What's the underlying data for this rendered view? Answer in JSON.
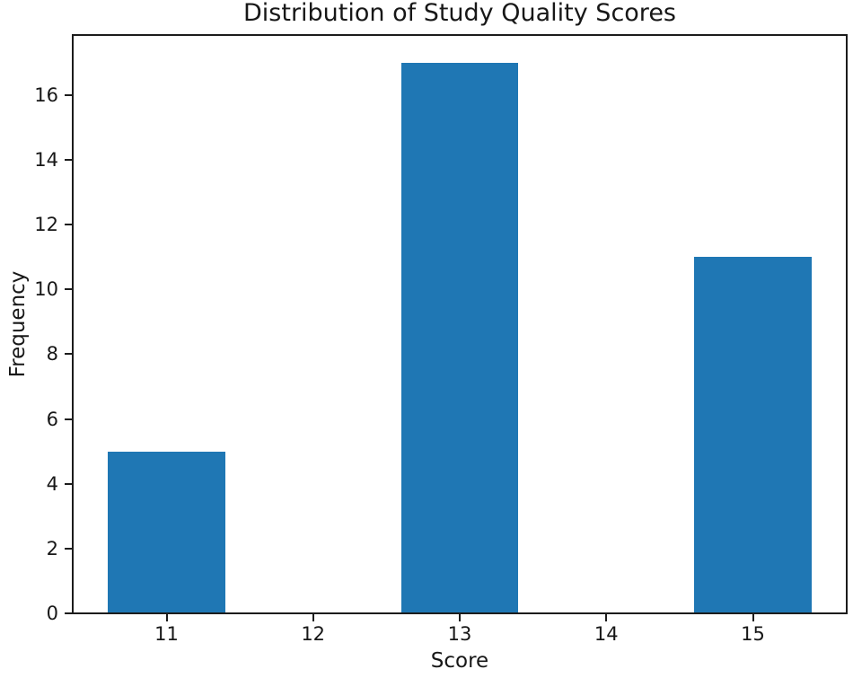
{
  "figure": {
    "background": "#ffffff"
  },
  "chart_data": {
    "type": "bar",
    "title": "Distribution of Study Quality Scores",
    "xlabel": "Score",
    "ylabel": "Frequency",
    "categories": [
      11,
      12,
      13,
      14,
      15
    ],
    "values": [
      5,
      0,
      17,
      0,
      11
    ],
    "bar_color": "#1f77b4",
    "bar_width": 0.8,
    "xticks": [
      11,
      12,
      13,
      14,
      15
    ],
    "yticks": [
      0,
      2,
      4,
      6,
      8,
      10,
      12,
      14,
      16
    ],
    "xlim": [
      10.36,
      15.64
    ],
    "ylim": [
      0,
      17.85
    ],
    "grid": false,
    "legend": null,
    "axis_color": "#1c1c1c",
    "text_color": "#171717"
  }
}
